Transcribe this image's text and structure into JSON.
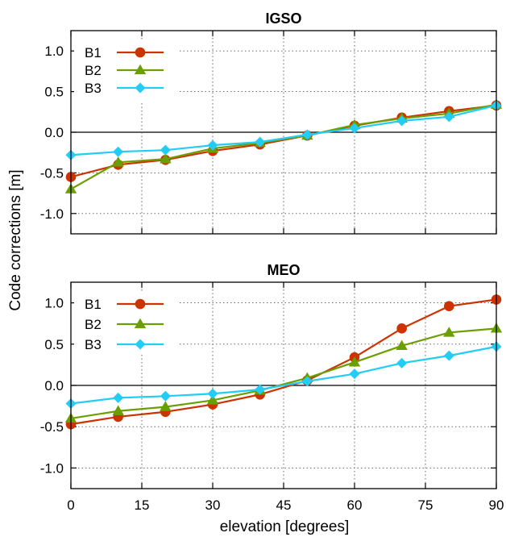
{
  "figure": {
    "ylabel": "Code corrections [m]",
    "xlabel": "elevation [degrees]"
  },
  "colors": {
    "B1": "#cc3300",
    "B2": "#6b9e00",
    "B3": "#22ccf5"
  },
  "markers": {
    "B1": "circle",
    "B2": "triangle",
    "B3": "diamond"
  },
  "chart_data": [
    {
      "type": "line",
      "title": "IGSO",
      "xlabel": "elevation [degrees]",
      "ylabel": "Code corrections [m]",
      "x": [
        0,
        10,
        20,
        30,
        40,
        50,
        60,
        70,
        80,
        90
      ],
      "xlim": [
        0,
        90
      ],
      "ylim": [
        -1.25,
        1.25
      ],
      "xticks": [
        0,
        15,
        30,
        45,
        60,
        75,
        90
      ],
      "yticks": [
        1.0,
        0.5,
        0.0,
        -0.5,
        -1.0
      ],
      "ytick_labels": [
        "1.0",
        "0.5",
        "0.0",
        "-0.5",
        "-1.0"
      ],
      "grid": true,
      "legend_position": "top-left",
      "series": [
        {
          "name": "B1",
          "values": [
            -0.55,
            -0.4,
            -0.34,
            -0.23,
            -0.15,
            -0.04,
            0.08,
            0.18,
            0.26,
            0.33
          ]
        },
        {
          "name": "B2",
          "values": [
            -0.7,
            -0.37,
            -0.33,
            -0.2,
            -0.13,
            -0.04,
            0.09,
            0.17,
            0.23,
            0.34
          ]
        },
        {
          "name": "B3",
          "values": [
            -0.28,
            -0.24,
            -0.22,
            -0.16,
            -0.12,
            -0.03,
            0.05,
            0.14,
            0.19,
            0.33
          ]
        }
      ]
    },
    {
      "type": "line",
      "title": "MEO",
      "xlabel": "elevation [degrees]",
      "ylabel": "Code corrections [m]",
      "x": [
        0,
        10,
        20,
        30,
        40,
        50,
        60,
        70,
        80,
        90
      ],
      "xlim": [
        0,
        90
      ],
      "ylim": [
        -1.25,
        1.25
      ],
      "xticks": [
        0,
        15,
        30,
        45,
        60,
        75,
        90
      ],
      "xtick_labels": [
        "0",
        "15",
        "30",
        "45",
        "60",
        "75",
        "90"
      ],
      "yticks": [
        1.0,
        0.5,
        0.0,
        -0.5,
        -1.0
      ],
      "ytick_labels": [
        "1.0",
        "0.5",
        "0.0",
        "-0.5",
        "-1.0"
      ],
      "grid": true,
      "legend_position": "top-left",
      "series": [
        {
          "name": "B1",
          "values": [
            -0.47,
            -0.38,
            -0.32,
            -0.23,
            -0.11,
            0.06,
            0.34,
            0.69,
            0.96,
            1.04
          ]
        },
        {
          "name": "B2",
          "values": [
            -0.4,
            -0.31,
            -0.26,
            -0.18,
            -0.06,
            0.09,
            0.28,
            0.48,
            0.64,
            0.69
          ]
        },
        {
          "name": "B3",
          "values": [
            -0.22,
            -0.15,
            -0.13,
            -0.1,
            -0.05,
            0.05,
            0.14,
            0.27,
            0.36,
            0.47
          ]
        }
      ]
    }
  ]
}
